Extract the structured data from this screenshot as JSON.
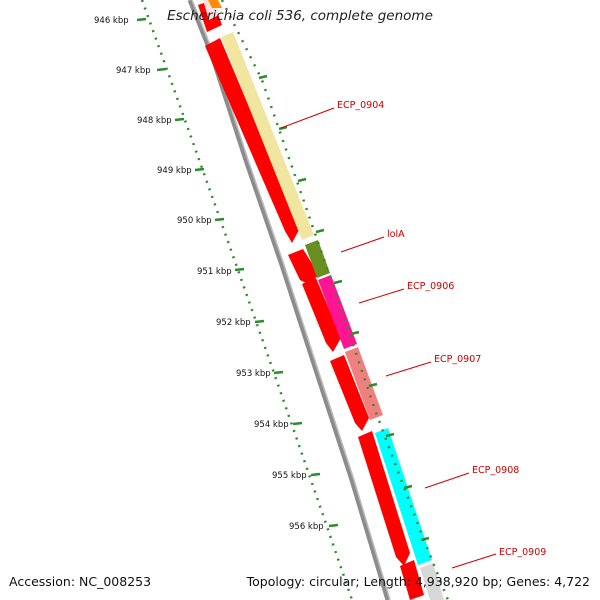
{
  "header": {
    "title": "Escherichia coli 536, complete genome"
  },
  "footer": {
    "accession": "Accession: NC_008253",
    "summary": "Topology: circular; Length: 4,938,920 bp; Genes: 4,722"
  },
  "colors": {
    "backbone": "#8c8c8c",
    "forward_cds": "#ff0000",
    "ticks": "#2e8b2e",
    "label": "#cc0000"
  },
  "scale": {
    "unit": "kbp",
    "labels": [
      "946 kbp",
      "947 kbp",
      "948 kbp",
      "949 kbp",
      "950 kbp",
      "951 kbp",
      "952 kbp",
      "953 kbp",
      "954 kbp",
      "955 kbp",
      "956 kbp"
    ]
  },
  "genes": [
    {
      "name": "ECP_0904",
      "color": "#f0e6a0",
      "strand": "+"
    },
    {
      "name": "lolA",
      "color": "#6b8e23",
      "strand": "+"
    },
    {
      "name": "ECP_0906",
      "color": "#ff1493",
      "strand": "+"
    },
    {
      "name": "ECP_0907",
      "color": "#f08080",
      "strand": "+"
    },
    {
      "name": "ECP_0908",
      "color": "#00ffff",
      "strand": "+"
    },
    {
      "name": "ECP_0909",
      "color": "#ffa07a",
      "strand": "+"
    }
  ]
}
